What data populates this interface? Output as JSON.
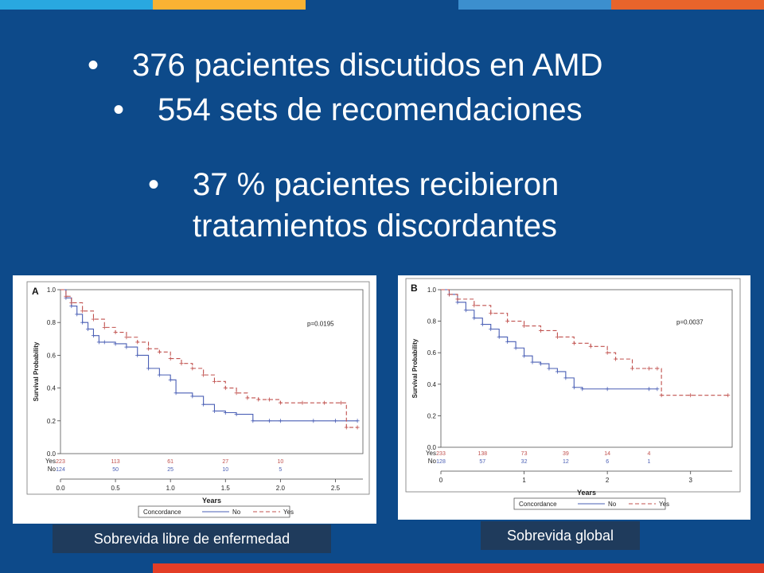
{
  "colors": {
    "background": "#0d4a8a",
    "caption_bg": "#1f3b5c",
    "topbar": [
      "#29a8e0",
      "#f9b233",
      "#0d4a8a",
      "#3c8fce",
      "#e8642b"
    ],
    "bottombar": [
      "#0d4a8a",
      "#e33d26"
    ],
    "series_no": "#4a5fb5",
    "series_yes": "#c0504d"
  },
  "slide": {
    "bullets": [
      "376 pacientes discutidos en AMD",
      "554 sets de recomendaciones",
      "37 % pacientes recibieron",
      "tratamientos discordantes"
    ],
    "bullet_symbol": "•"
  },
  "captions": {
    "left": "Sobrevida libre de enfermedad",
    "right": "Sobrevida global"
  },
  "chart_data": [
    {
      "type": "line",
      "panel_label": "A",
      "xlabel": "Years",
      "ylabel": "Survival Probability",
      "xlim": [
        0,
        2.75
      ],
      "ylim": [
        0,
        1.0
      ],
      "x_ticks": [
        "0.0",
        "0.5",
        "1.0",
        "1.5",
        "2.0",
        "2.5"
      ],
      "x_tick_values": [
        0,
        0.5,
        1.0,
        1.5,
        2.0,
        2.5
      ],
      "y_ticks": [
        "0.0",
        "0.2",
        "0.4",
        "0.6",
        "0.8",
        "1.0"
      ],
      "y_tick_values": [
        0,
        0.2,
        0.4,
        0.6,
        0.8,
        1.0
      ],
      "annotation": "p=0.0195",
      "legend_title": "Concordance",
      "legend_placement": "bottom",
      "series": [
        {
          "name": "No",
          "style": "solid",
          "x": [
            0,
            0.05,
            0.1,
            0.15,
            0.2,
            0.25,
            0.3,
            0.35,
            0.4,
            0.5,
            0.6,
            0.7,
            0.8,
            0.9,
            1.0,
            1.05,
            1.2,
            1.3,
            1.4,
            1.5,
            1.6,
            1.75,
            1.9,
            2.0,
            2.3,
            2.5,
            2.7
          ],
          "y": [
            1.0,
            0.95,
            0.9,
            0.85,
            0.8,
            0.76,
            0.72,
            0.68,
            0.68,
            0.67,
            0.65,
            0.6,
            0.52,
            0.48,
            0.45,
            0.37,
            0.35,
            0.3,
            0.26,
            0.25,
            0.24,
            0.2,
            0.2,
            0.2,
            0.2,
            0.2,
            0.2
          ]
        },
        {
          "name": "Yes",
          "style": "dashed",
          "x": [
            0,
            0.05,
            0.1,
            0.2,
            0.3,
            0.4,
            0.5,
            0.6,
            0.7,
            0.8,
            0.9,
            1.0,
            1.1,
            1.2,
            1.3,
            1.4,
            1.5,
            1.6,
            1.7,
            1.8,
            1.9,
            2.0,
            2.2,
            2.4,
            2.55,
            2.6,
            2.7
          ],
          "y": [
            1.0,
            0.96,
            0.92,
            0.87,
            0.82,
            0.77,
            0.74,
            0.71,
            0.68,
            0.64,
            0.62,
            0.58,
            0.55,
            0.52,
            0.48,
            0.44,
            0.4,
            0.37,
            0.34,
            0.33,
            0.33,
            0.31,
            0.31,
            0.31,
            0.31,
            0.16,
            0.16
          ]
        }
      ],
      "risk_table": {
        "labels": [
          "Yes",
          "No"
        ],
        "x": [
          0.0,
          0.5,
          1.0,
          1.5,
          2.0
        ],
        "rows": [
          [
            "223",
            "113",
            "61",
            "27",
            "10"
          ],
          [
            "124",
            "50",
            "25",
            "10",
            "5"
          ]
        ]
      }
    },
    {
      "type": "line",
      "panel_label": "B",
      "xlabel": "Years",
      "ylabel": "Survival Probability",
      "xlim": [
        0,
        3.5
      ],
      "ylim": [
        0,
        1.0
      ],
      "x_ticks": [
        "0",
        "1",
        "2",
        "3"
      ],
      "x_tick_values": [
        0,
        1,
        2,
        3
      ],
      "y_ticks": [
        "0.0",
        "0.2",
        "0.4",
        "0.6",
        "0.8",
        "1.0"
      ],
      "y_tick_values": [
        0,
        0.2,
        0.4,
        0.6,
        0.8,
        1.0
      ],
      "annotation": "p=0.0037",
      "legend_title": "Concordance",
      "legend_placement": "bottom",
      "series": [
        {
          "name": "No",
          "style": "solid",
          "x": [
            0,
            0.1,
            0.2,
            0.3,
            0.4,
            0.5,
            0.6,
            0.7,
            0.8,
            0.9,
            1.0,
            1.1,
            1.2,
            1.3,
            1.4,
            1.5,
            1.6,
            1.7,
            2.0,
            2.5,
            2.6
          ],
          "y": [
            1.0,
            0.97,
            0.92,
            0.87,
            0.82,
            0.78,
            0.75,
            0.7,
            0.67,
            0.63,
            0.58,
            0.54,
            0.53,
            0.5,
            0.48,
            0.44,
            0.38,
            0.37,
            0.37,
            0.37,
            0.37
          ]
        },
        {
          "name": "Yes",
          "style": "dashed",
          "x": [
            0,
            0.1,
            0.2,
            0.4,
            0.6,
            0.8,
            1.0,
            1.2,
            1.4,
            1.6,
            1.8,
            2.0,
            2.1,
            2.3,
            2.5,
            2.6,
            2.65,
            3.0,
            3.45
          ],
          "y": [
            1.0,
            0.97,
            0.94,
            0.9,
            0.85,
            0.8,
            0.77,
            0.74,
            0.7,
            0.66,
            0.64,
            0.6,
            0.56,
            0.5,
            0.5,
            0.5,
            0.33,
            0.33,
            0.33
          ]
        }
      ],
      "risk_table": {
        "labels": [
          "Yes",
          "No"
        ],
        "x": [
          0,
          0.5,
          1.0,
          1.5,
          2.0,
          2.5
        ],
        "rows": [
          [
            "233",
            "138",
            "73",
            "39",
            "14",
            "4"
          ],
          [
            "128",
            "57",
            "32",
            "12",
            "6",
            "1"
          ]
        ]
      }
    }
  ]
}
